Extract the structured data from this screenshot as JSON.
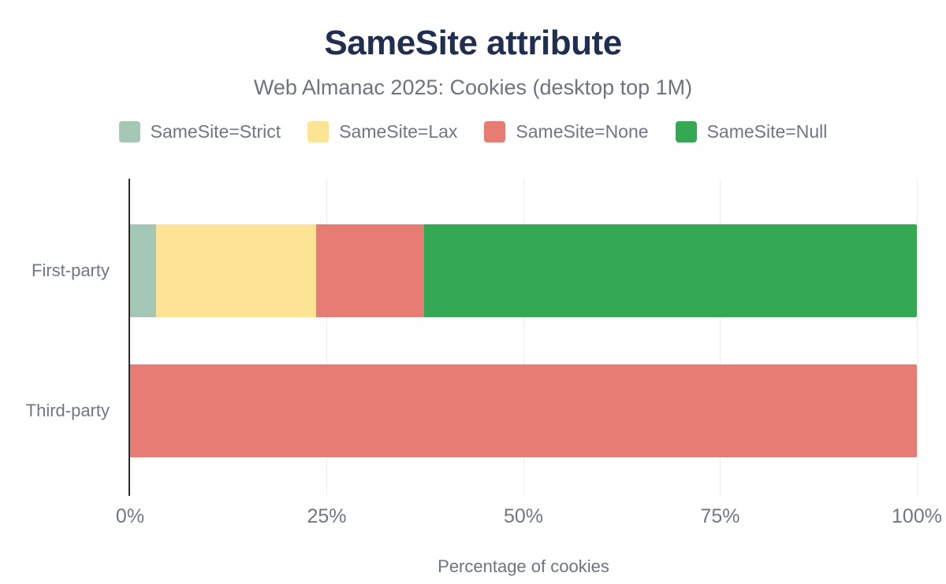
{
  "header": {
    "title": "SameSite attribute",
    "subtitle": "Web Almanac 2025: Cookies (desktop top 1M)"
  },
  "legend": [
    {
      "label": "SameSite=Strict",
      "color": "#a5c7b6"
    },
    {
      "label": "SameSite=Lax",
      "color": "#fde494"
    },
    {
      "label": "SameSite=None",
      "color": "#e67c73"
    },
    {
      "label": "SameSite=Null",
      "color": "#34a853"
    }
  ],
  "chart_data": {
    "type": "bar",
    "orientation": "horizontal",
    "stacked": true,
    "title": "SameSite attribute",
    "subtitle": "Web Almanac 2025: Cookies (desktop top 1M)",
    "categories": [
      "First-party",
      "Third-party"
    ],
    "series": [
      {
        "name": "SameSite=Strict",
        "color": "#a5c7b6",
        "values": [
          3.3,
          0
        ]
      },
      {
        "name": "SameSite=Lax",
        "color": "#fde494",
        "values": [
          20.3,
          0
        ]
      },
      {
        "name": "SameSite=None",
        "color": "#e67c73",
        "values": [
          13.8,
          100
        ]
      },
      {
        "name": "SameSite=Null",
        "color": "#34a853",
        "values": [
          62.6,
          0
        ]
      }
    ],
    "xlabel": "Percentage of cookies",
    "ylabel": "",
    "xlim": [
      0,
      100
    ],
    "x_ticks": [
      "0%",
      "25%",
      "50%",
      "75%",
      "100%"
    ],
    "x_tick_values": [
      0,
      25,
      50,
      75,
      100
    ],
    "grid": true,
    "legend_position": "top"
  }
}
